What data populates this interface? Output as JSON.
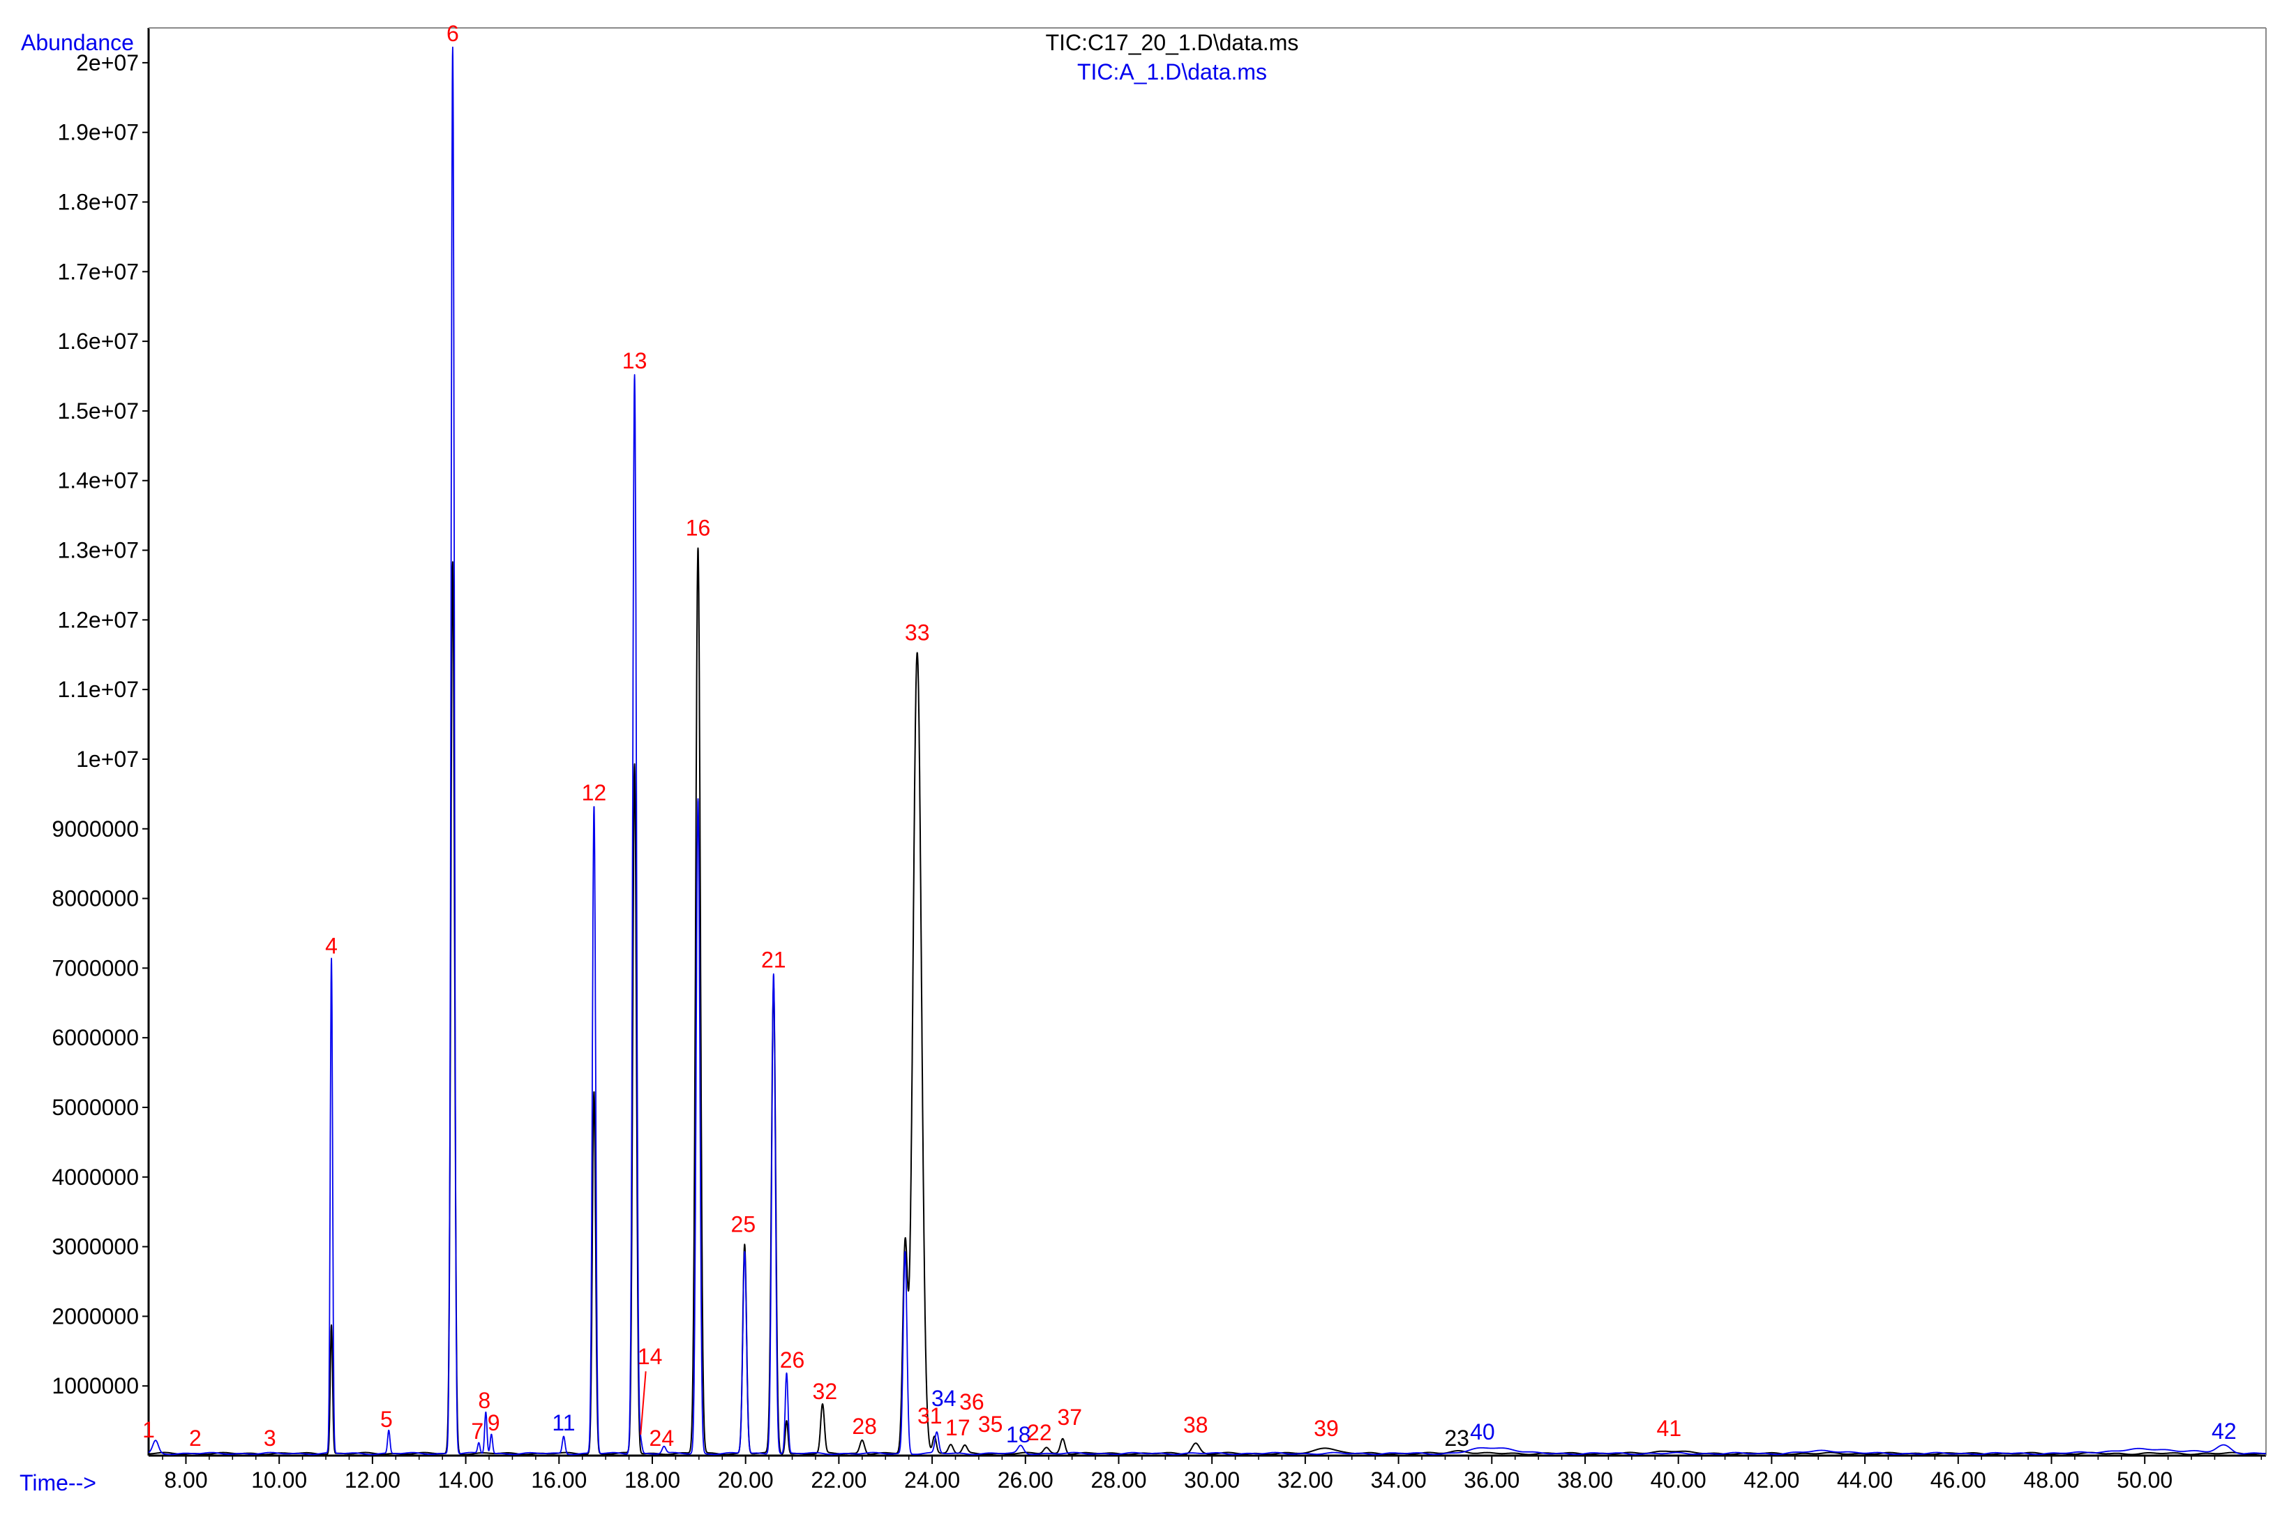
{
  "header": {
    "ylabel": "Abundance",
    "xlabel": "Time-->",
    "legend": [
      {
        "name": "TIC:C17_20_1.D\\data.ms",
        "color": "#000000"
      },
      {
        "name": "TIC:A_1.D\\data.ms",
        "color": "#0000ee"
      }
    ]
  },
  "chart_data": {
    "type": "line",
    "xlim": [
      7.2,
      52.6
    ],
    "ylim": [
      0,
      20500000
    ],
    "grid": false,
    "legend_position": "top-center",
    "x_ticks": [
      {
        "value": 8,
        "label": "8.00"
      },
      {
        "value": 10,
        "label": "10.00"
      },
      {
        "value": 12,
        "label": "12.00"
      },
      {
        "value": 14,
        "label": "14.00"
      },
      {
        "value": 16,
        "label": "16.00"
      },
      {
        "value": 18,
        "label": "18.00"
      },
      {
        "value": 20,
        "label": "20.00"
      },
      {
        "value": 22,
        "label": "22.00"
      },
      {
        "value": 24,
        "label": "24.00"
      },
      {
        "value": 26,
        "label": "26.00"
      },
      {
        "value": 28,
        "label": "28.00"
      },
      {
        "value": 30,
        "label": "30.00"
      },
      {
        "value": 32,
        "label": "32.00"
      },
      {
        "value": 34,
        "label": "34.00"
      },
      {
        "value": 36,
        "label": "36.00"
      },
      {
        "value": 38,
        "label": "38.00"
      },
      {
        "value": 40,
        "label": "40.00"
      },
      {
        "value": 42,
        "label": "42.00"
      },
      {
        "value": 44,
        "label": "44.00"
      },
      {
        "value": 46,
        "label": "46.00"
      },
      {
        "value": 48,
        "label": "48.00"
      },
      {
        "value": 50,
        "label": "50.00"
      }
    ],
    "y_ticks": [
      {
        "value": 1000000,
        "label": "1000000"
      },
      {
        "value": 2000000,
        "label": "2000000"
      },
      {
        "value": 3000000,
        "label": "3000000"
      },
      {
        "value": 4000000,
        "label": "4000000"
      },
      {
        "value": 5000000,
        "label": "5000000"
      },
      {
        "value": 6000000,
        "label": "6000000"
      },
      {
        "value": 7000000,
        "label": "7000000"
      },
      {
        "value": 8000000,
        "label": "8000000"
      },
      {
        "value": 9000000,
        "label": "9000000"
      },
      {
        "value": 10000000,
        "label": "1e+07"
      },
      {
        "value": 11000000,
        "label": "1.1e+07"
      },
      {
        "value": 12000000,
        "label": "1.2e+07"
      },
      {
        "value": 13000000,
        "label": "1.3e+07"
      },
      {
        "value": 14000000,
        "label": "1.4e+07"
      },
      {
        "value": 15000000,
        "label": "1.5e+07"
      },
      {
        "value": 16000000,
        "label": "1.6e+07"
      },
      {
        "value": 17000000,
        "label": "1.7e+07"
      },
      {
        "value": 18000000,
        "label": "1.8e+07"
      },
      {
        "value": 19000000,
        "label": "1.9e+07"
      },
      {
        "value": 20000000,
        "label": "2e+07"
      }
    ],
    "baseline": 30000,
    "series": [
      {
        "name": "TIC:C17_20_1.D\\data.ms",
        "color": "#000000",
        "peaks": [
          {
            "x": 11.12,
            "y": 1850000,
            "w": 0.025
          },
          {
            "x": 13.72,
            "y": 12800000,
            "w": 0.04
          },
          {
            "x": 16.75,
            "y": 5200000,
            "w": 0.035
          },
          {
            "x": 17.62,
            "y": 9900000,
            "w": 0.04
          },
          {
            "x": 18.98,
            "y": 13000000,
            "w": 0.05
          },
          {
            "x": 19.98,
            "y": 3000000,
            "w": 0.04
          },
          {
            "x": 20.6,
            "y": 6700000,
            "w": 0.045
          },
          {
            "x": 20.88,
            "y": 480000,
            "w": 0.03
          },
          {
            "x": 21.65,
            "y": 700000,
            "w": 0.04
          },
          {
            "x": 22.5,
            "y": 200000,
            "w": 0.05
          },
          {
            "x": 23.42,
            "y": 2900000,
            "w": 0.05
          },
          {
            "x": 23.68,
            "y": 11500000,
            "w": 0.09
          },
          {
            "x": 24.05,
            "y": 250000,
            "w": 0.04
          },
          {
            "x": 24.4,
            "y": 130000,
            "w": 0.05
          },
          {
            "x": 24.7,
            "y": 110000,
            "w": 0.05
          },
          {
            "x": 26.45,
            "y": 90000,
            "w": 0.06
          },
          {
            "x": 26.8,
            "y": 220000,
            "w": 0.05
          },
          {
            "x": 29.65,
            "y": 150000,
            "w": 0.08
          },
          {
            "x": 32.45,
            "y": 90000,
            "w": 0.2
          },
          {
            "x": 35.3,
            "y": 40000,
            "w": 0.2
          },
          {
            "x": 39.8,
            "y": 40000,
            "w": 0.3
          }
        ]
      },
      {
        "name": "TIC:A_1.D\\data.ms",
        "color": "#0000ee",
        "peaks": [
          {
            "x": 7.35,
            "y": 180000,
            "w": 0.06
          },
          {
            "x": 11.12,
            "y": 7100000,
            "w": 0.025
          },
          {
            "x": 12.35,
            "y": 330000,
            "w": 0.025
          },
          {
            "x": 13.72,
            "y": 20200000,
            "w": 0.035
          },
          {
            "x": 14.28,
            "y": 150000,
            "w": 0.025
          },
          {
            "x": 14.43,
            "y": 600000,
            "w": 0.025
          },
          {
            "x": 14.55,
            "y": 280000,
            "w": 0.025
          },
          {
            "x": 16.1,
            "y": 250000,
            "w": 0.03
          },
          {
            "x": 16.75,
            "y": 9300000,
            "w": 0.035
          },
          {
            "x": 17.62,
            "y": 15500000,
            "w": 0.04
          },
          {
            "x": 17.75,
            "y": 180000,
            "w": 0.03
          },
          {
            "x": 18.25,
            "y": 100000,
            "w": 0.04
          },
          {
            "x": 18.98,
            "y": 9400000,
            "w": 0.04
          },
          {
            "x": 19.98,
            "y": 2900000,
            "w": 0.04
          },
          {
            "x": 20.6,
            "y": 6900000,
            "w": 0.04
          },
          {
            "x": 20.88,
            "y": 1150000,
            "w": 0.03
          },
          {
            "x": 23.42,
            "y": 2900000,
            "w": 0.04
          },
          {
            "x": 24.1,
            "y": 300000,
            "w": 0.04
          },
          {
            "x": 25.9,
            "y": 110000,
            "w": 0.06
          },
          {
            "x": 35.8,
            "y": 60000,
            "w": 0.3
          },
          {
            "x": 36.3,
            "y": 60000,
            "w": 0.3
          },
          {
            "x": 43.2,
            "y": 40000,
            "w": 0.4
          },
          {
            "x": 50.1,
            "y": 60000,
            "w": 0.8
          },
          {
            "x": 51.7,
            "y": 110000,
            "w": 0.15
          }
        ]
      }
    ],
    "annotations": [
      {
        "label": "1",
        "x": 7.2,
        "y": 200000,
        "color": "#ff0000"
      },
      {
        "label": "2",
        "x": 8.2,
        "y": 80000,
        "color": "#ff0000"
      },
      {
        "label": "3",
        "x": 9.8,
        "y": 80000,
        "color": "#ff0000"
      },
      {
        "label": "4",
        "x": 11.12,
        "y": 7150000,
        "color": "#ff0000"
      },
      {
        "label": "5",
        "x": 12.3,
        "y": 350000,
        "color": "#ff0000"
      },
      {
        "label": "6",
        "x": 13.72,
        "y": 20250000,
        "color": "#ff0000"
      },
      {
        "label": "7",
        "x": 14.25,
        "y": 180000,
        "color": "#ff0000"
      },
      {
        "label": "8",
        "x": 14.4,
        "y": 620000,
        "color": "#ff0000"
      },
      {
        "label": "9",
        "x": 14.6,
        "y": 300000,
        "color": "#ff0000"
      },
      {
        "label": "11",
        "x": 16.1,
        "y": 300000,
        "color": "#0000ee"
      },
      {
        "label": "12",
        "x": 16.75,
        "y": 9350000,
        "color": "#ff0000"
      },
      {
        "label": "13",
        "x": 17.62,
        "y": 15550000,
        "color": "#ff0000"
      },
      {
        "label": "14",
        "x": 17.95,
        "y": 1250000,
        "color": "#ff0000"
      },
      {
        "label": "24",
        "x": 18.2,
        "y": 80000,
        "color": "#ff0000"
      },
      {
        "label": "16",
        "x": 18.98,
        "y": 13150000,
        "color": "#ff0000"
      },
      {
        "label": "25",
        "x": 19.95,
        "y": 3150000,
        "color": "#ff0000"
      },
      {
        "label": "21",
        "x": 20.6,
        "y": 6950000,
        "color": "#ff0000"
      },
      {
        "label": "26",
        "x": 21.0,
        "y": 1200000,
        "color": "#ff0000"
      },
      {
        "label": "32",
        "x": 21.7,
        "y": 750000,
        "color": "#ff0000"
      },
      {
        "label": "28",
        "x": 22.55,
        "y": 250000,
        "color": "#ff0000"
      },
      {
        "label": "33",
        "x": 23.68,
        "y": 11650000,
        "color": "#ff0000"
      },
      {
        "label": "31",
        "x": 23.95,
        "y": 400000,
        "color": "#ff0000"
      },
      {
        "label": "34",
        "x": 24.25,
        "y": 650000,
        "color": "#0000ee"
      },
      {
        "label": "36",
        "x": 24.85,
        "y": 600000,
        "color": "#ff0000"
      },
      {
        "label": "17",
        "x": 24.55,
        "y": 230000,
        "color": "#ff0000"
      },
      {
        "label": "35",
        "x": 25.25,
        "y": 280000,
        "color": "#ff0000"
      },
      {
        "label": "18",
        "x": 25.85,
        "y": 130000,
        "color": "#0000ee"
      },
      {
        "label": "22",
        "x": 26.3,
        "y": 160000,
        "color": "#ff0000"
      },
      {
        "label": "37",
        "x": 26.95,
        "y": 380000,
        "color": "#ff0000"
      },
      {
        "label": "38",
        "x": 29.65,
        "y": 270000,
        "color": "#ff0000"
      },
      {
        "label": "39",
        "x": 32.45,
        "y": 220000,
        "color": "#ff0000"
      },
      {
        "label": "23",
        "x": 35.25,
        "y": 80000,
        "color": "#000000"
      },
      {
        "label": "40",
        "x": 35.8,
        "y": 170000,
        "color": "#0000ee"
      },
      {
        "label": "41",
        "x": 39.8,
        "y": 220000,
        "color": "#ff0000"
      },
      {
        "label": "42",
        "x": 51.7,
        "y": 180000,
        "color": "#0000ee"
      }
    ]
  }
}
